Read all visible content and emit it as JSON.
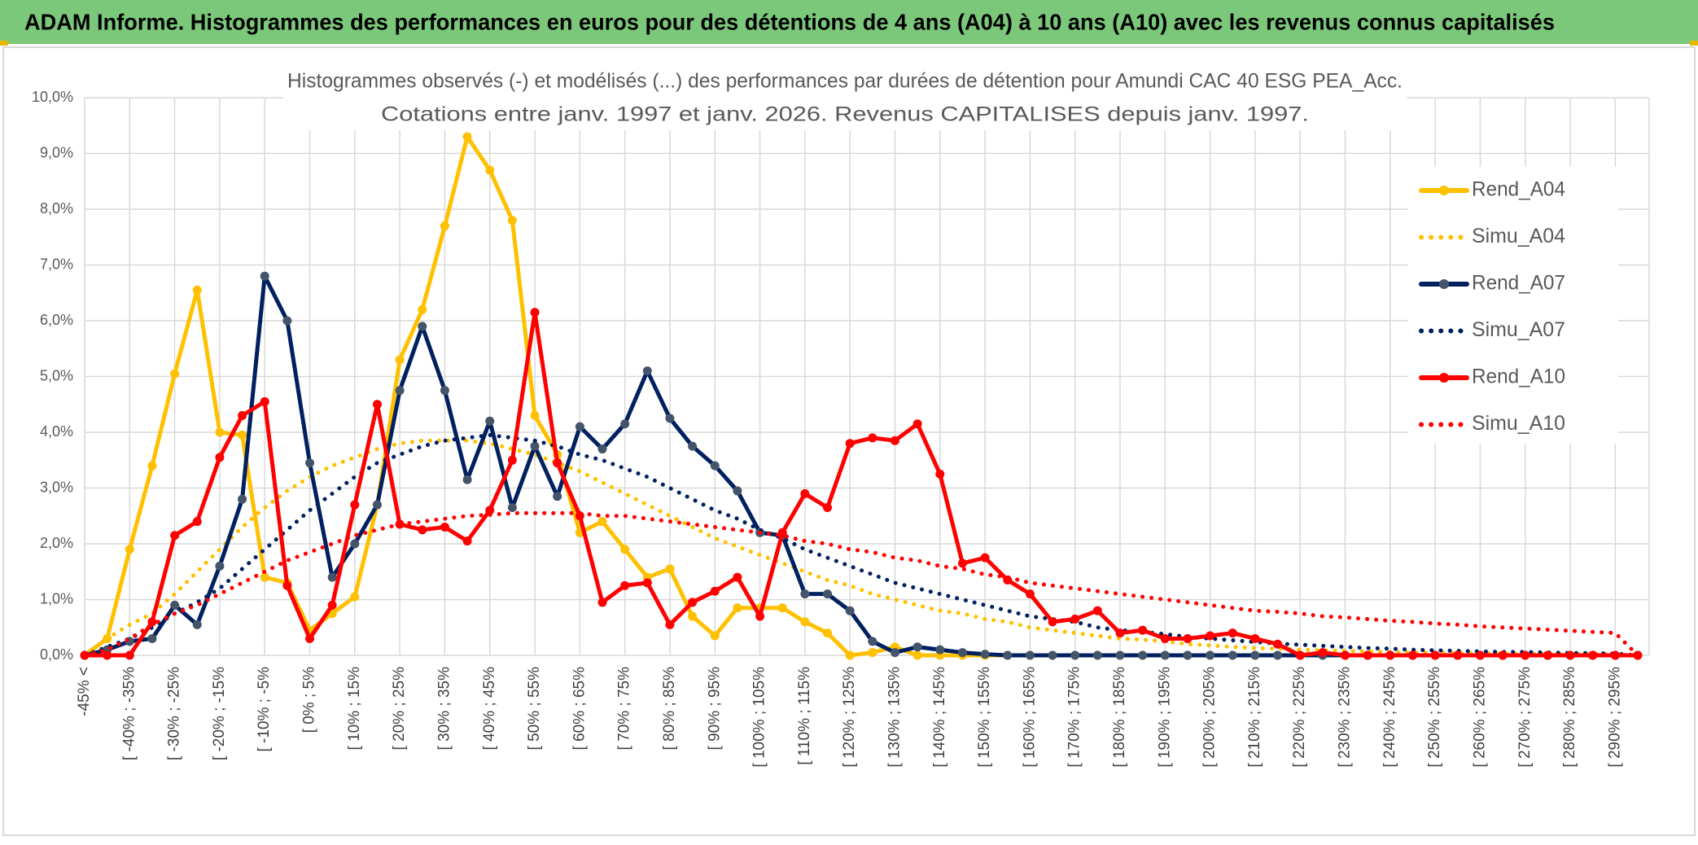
{
  "header": {
    "title": "ADAM Informe. Histogrammes des performances en euros pour des détentions de 4 ans (A04) à 10 ans (A10) avec les revenus connus capitalisés"
  },
  "chart_data": {
    "type": "line",
    "title": "Histogrammes observés (-) et modélisés (...) des performances par durées de détention pour Amundi CAC 40 ESG PEA_Acc.",
    "subtitle": "Cotations entre janv. 1997 et janv. 2026. Revenus CAPITALISES depuis janv. 1997.",
    "categories": [
      "-45% <",
      null,
      "[ -40% ; -35%",
      null,
      "[ -30% ; -25%",
      null,
      "[ -20% ; -15%",
      null,
      "[ -10% ; -5%",
      null,
      "[ 0% ; 5%",
      null,
      "[ 10% ; 15%",
      null,
      "[ 20% ; 25%",
      null,
      "[ 30% ; 35%",
      null,
      "[ 40% ; 45%",
      null,
      "[ 50% ; 55%",
      null,
      "[ 60% ; 65%",
      null,
      "[ 70% ; 75%",
      null,
      "[ 80% ; 85%",
      null,
      "[ 90% ; 95%",
      null,
      "[ 100% ; 105%",
      null,
      "[ 110% ; 115%",
      null,
      "[ 120% ; 125%",
      null,
      "[ 130% ; 135%",
      null,
      "[ 140% ; 145%",
      null,
      "[ 150% ; 155%",
      null,
      "[ 160% ; 165%",
      null,
      "[ 170% ; 175%",
      null,
      "[ 180% ; 185%",
      null,
      "[ 190% ; 195%",
      null,
      "[ 200% ; 205%",
      null,
      "[ 210% ; 215%",
      null,
      "[ 220% ; 225%",
      null,
      "[ 230% ; 235%",
      null,
      "[ 240% ; 245%",
      null,
      "[ 250% ; 255%",
      null,
      "[ 260% ; 265%",
      null,
      "[ 270% ; 275%",
      null,
      "[ 280% ; 285%",
      null,
      "[ 290% ; 295%",
      null
    ],
    "ylim": [
      0,
      10
    ],
    "yticks": [
      {
        "value": 0,
        "label": "0,0%"
      },
      {
        "value": 1,
        "label": "1,0%"
      },
      {
        "value": 2,
        "label": "2,0%"
      },
      {
        "value": 3,
        "label": "3,0%"
      },
      {
        "value": 4,
        "label": "4,0%"
      },
      {
        "value": 5,
        "label": "5,0%"
      },
      {
        "value": 6,
        "label": "6,0%"
      },
      {
        "value": 7,
        "label": "7,0%"
      },
      {
        "value": 8,
        "label": "8,0%"
      },
      {
        "value": 9,
        "label": "9,0%"
      },
      {
        "value": 10,
        "label": "10,0%"
      }
    ],
    "grid": true,
    "legend": "right",
    "series": [
      {
        "name": "Rend_A04",
        "color": "#ffc000",
        "style": "solid",
        "marker": true,
        "values": [
          0,
          0.3,
          1.9,
          3.4,
          5.05,
          6.55,
          4.0,
          3.95,
          1.4,
          1.3,
          0.45,
          0.75,
          1.05,
          2.7,
          5.3,
          6.2,
          7.7,
          9.3,
          8.7,
          7.8,
          4.3,
          3.6,
          2.2,
          2.4,
          1.9,
          1.4,
          1.55,
          0.7,
          0.35,
          0.85,
          0.85,
          0.85,
          0.6,
          0.4,
          0,
          0.05,
          0.15,
          0,
          0,
          0,
          0,
          0,
          0,
          0,
          0,
          0,
          0,
          0,
          0,
          0,
          0,
          0,
          0,
          0,
          0,
          0,
          0,
          0,
          0,
          0,
          0,
          0,
          0,
          0,
          0,
          0,
          0,
          0,
          0,
          0
        ]
      },
      {
        "name": "Simu_A04",
        "color": "#ffc000",
        "style": "dotted",
        "marker": false,
        "values": [
          0,
          0.3,
          0.55,
          0.75,
          1.1,
          1.5,
          1.9,
          2.3,
          2.65,
          2.95,
          3.2,
          3.4,
          3.55,
          3.7,
          3.8,
          3.85,
          3.85,
          3.85,
          3.8,
          3.7,
          3.6,
          3.45,
          3.3,
          3.1,
          2.9,
          2.7,
          2.5,
          2.3,
          2.1,
          1.95,
          1.8,
          1.65,
          1.5,
          1.35,
          1.25,
          1.1,
          1.0,
          0.9,
          0.8,
          0.75,
          0.65,
          0.6,
          0.5,
          0.45,
          0.4,
          0.35,
          0.3,
          0.28,
          0.25,
          0.2,
          0.18,
          0.15,
          0.13,
          0.12,
          0.1,
          0.09,
          0.08,
          0.07,
          0.06,
          0.05,
          0.05,
          0.04,
          0.04,
          0.03,
          0.03,
          0.02,
          0.02,
          0.02,
          0.02,
          0
        ]
      },
      {
        "name": "Rend_A07",
        "color": "#002060",
        "markerColor": "#44546a",
        "style": "solid",
        "marker": true,
        "values": [
          0,
          0.1,
          0.25,
          0.3,
          0.9,
          0.55,
          1.6,
          2.8,
          6.8,
          6.0,
          3.45,
          1.4,
          2.0,
          2.7,
          4.75,
          5.9,
          4.75,
          3.15,
          4.2,
          2.65,
          3.75,
          2.85,
          4.1,
          3.7,
          4.15,
          5.1,
          4.25,
          3.75,
          3.4,
          2.95,
          2.2,
          2.15,
          1.1,
          1.1,
          0.8,
          0.25,
          0.05,
          0.15,
          0.1,
          0.05,
          0.02,
          0,
          0,
          0,
          0,
          0,
          0,
          0,
          0,
          0,
          0,
          0,
          0,
          0,
          0,
          0,
          0,
          0,
          0,
          0,
          0,
          0,
          0,
          0,
          0,
          0,
          0,
          0,
          0,
          0
        ]
      },
      {
        "name": "Simu_A07",
        "color": "#002060",
        "style": "dotted",
        "marker": false,
        "values": [
          0,
          0.15,
          0.3,
          0.5,
          0.75,
          0.95,
          1.2,
          1.55,
          1.9,
          2.25,
          2.6,
          2.9,
          3.2,
          3.45,
          3.6,
          3.75,
          3.85,
          3.9,
          3.95,
          3.9,
          3.85,
          3.75,
          3.6,
          3.5,
          3.35,
          3.2,
          3.0,
          2.8,
          2.6,
          2.45,
          2.25,
          2.1,
          1.9,
          1.75,
          1.6,
          1.45,
          1.3,
          1.2,
          1.1,
          1.0,
          0.9,
          0.8,
          0.7,
          0.65,
          0.6,
          0.5,
          0.45,
          0.42,
          0.38,
          0.33,
          0.3,
          0.27,
          0.24,
          0.21,
          0.19,
          0.17,
          0.15,
          0.13,
          0.12,
          0.1,
          0.09,
          0.08,
          0.07,
          0.06,
          0.06,
          0.05,
          0.04,
          0.04,
          0.03,
          0
        ]
      },
      {
        "name": "Rend_A10",
        "color": "#ff0000",
        "style": "solid",
        "marker": true,
        "values": [
          0,
          0,
          0,
          0.6,
          2.15,
          2.4,
          3.55,
          4.3,
          4.55,
          1.25,
          0.3,
          0.9,
          2.7,
          4.5,
          2.35,
          2.25,
          2.3,
          2.05,
          2.6,
          3.5,
          6.15,
          3.45,
          2.5,
          0.95,
          1.25,
          1.3,
          0.55,
          0.95,
          1.15,
          1.4,
          0.7,
          2.2,
          2.9,
          2.65,
          3.8,
          3.9,
          3.85,
          4.15,
          3.25,
          1.65,
          1.75,
          1.35,
          1.1,
          0.6,
          0.65,
          0.8,
          0.4,
          0.45,
          0.3,
          0.3,
          0.35,
          0.4,
          0.3,
          0.2,
          0,
          0.05,
          0,
          0,
          0,
          0,
          0,
          0,
          0,
          0,
          0,
          0,
          0,
          0,
          0,
          0
        ]
      },
      {
        "name": "Simu_A10",
        "color": "#ff0000",
        "style": "dotted",
        "marker": false,
        "values": [
          0,
          0.1,
          0.3,
          0.55,
          0.75,
          0.9,
          1.1,
          1.3,
          1.5,
          1.7,
          1.85,
          2.0,
          2.15,
          2.25,
          2.35,
          2.4,
          2.45,
          2.5,
          2.52,
          2.55,
          2.55,
          2.55,
          2.55,
          2.5,
          2.5,
          2.45,
          2.4,
          2.35,
          2.3,
          2.25,
          2.2,
          2.15,
          2.05,
          2.0,
          1.9,
          1.85,
          1.75,
          1.7,
          1.6,
          1.55,
          1.45,
          1.4,
          1.3,
          1.25,
          1.2,
          1.15,
          1.1,
          1.05,
          1.0,
          0.95,
          0.9,
          0.85,
          0.8,
          0.78,
          0.75,
          0.7,
          0.68,
          0.65,
          0.62,
          0.6,
          0.57,
          0.55,
          0.52,
          0.5,
          0.48,
          0.46,
          0.44,
          0.42,
          0.4,
          0
        ]
      }
    ]
  }
}
